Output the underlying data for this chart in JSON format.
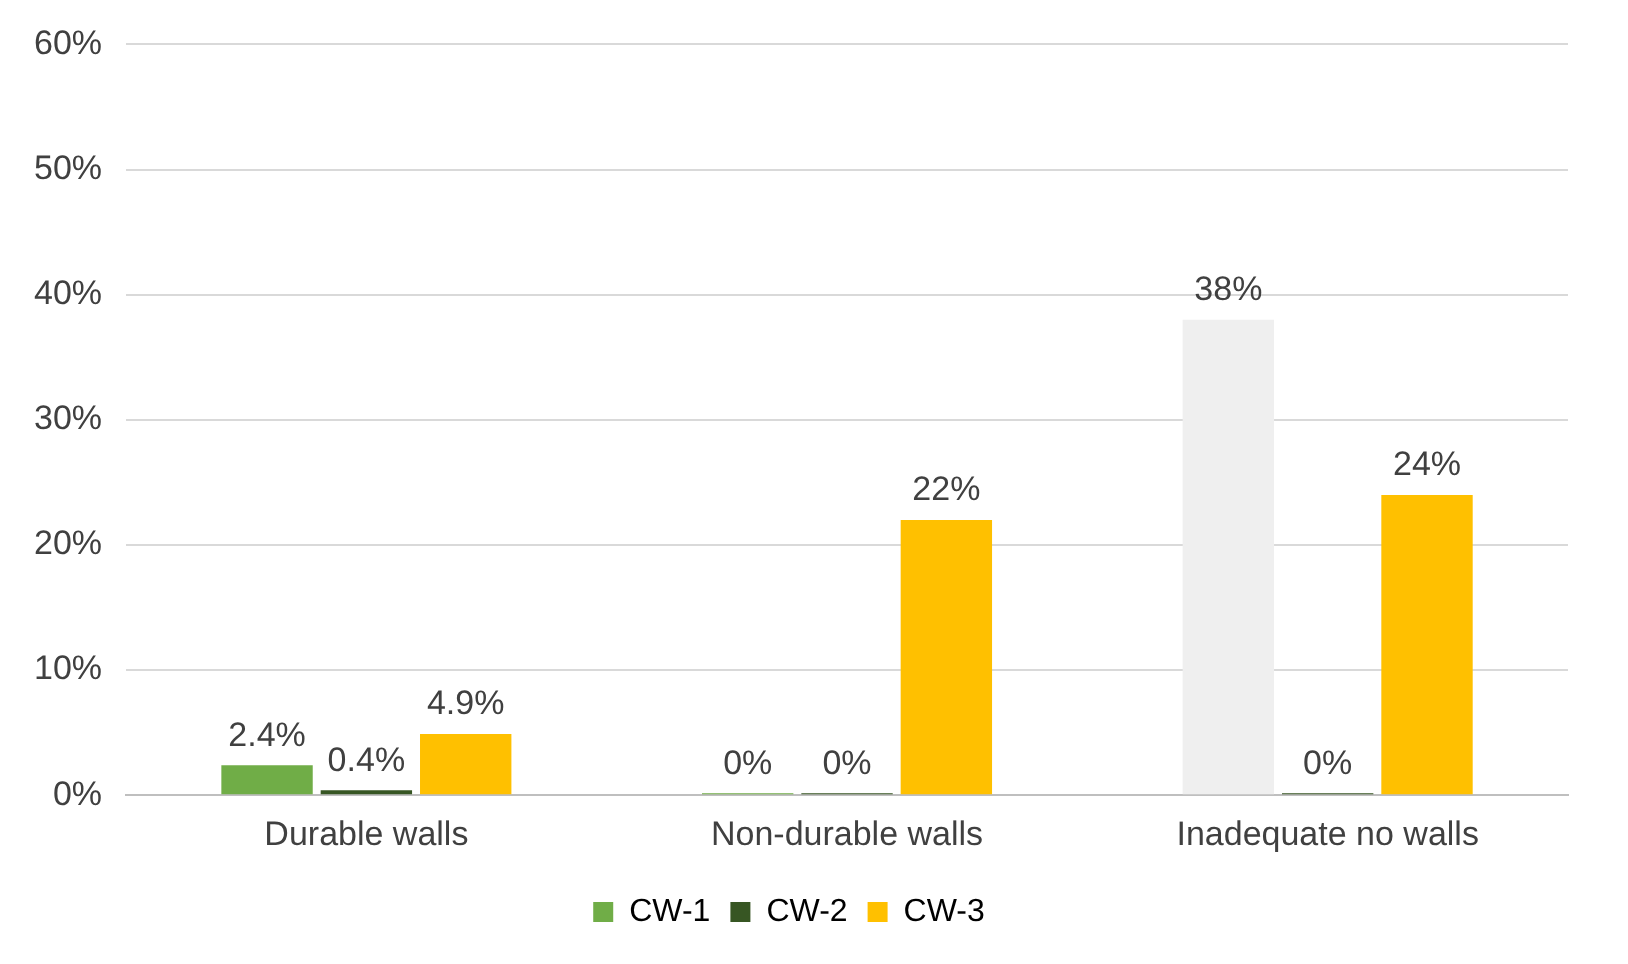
{
  "chart_data": {
    "type": "bar",
    "categories": [
      "Durable walls",
      "Non-durable walls",
      "Inadequate no walls"
    ],
    "series": [
      {
        "name": "CW-1",
        "color": "#70ad47",
        "colors": [
          "#70ad47",
          "#70ad47",
          "#efefef"
        ],
        "values": [
          2.4,
          0,
          38
        ],
        "value_labels": [
          "2.4%",
          "0%",
          "38%"
        ]
      },
      {
        "name": "CW-2",
        "color": "#375623",
        "values": [
          0.4,
          0,
          0
        ],
        "value_labels": [
          "0.4%",
          "0%",
          "0%"
        ]
      },
      {
        "name": "CW-3",
        "color": "#ffc000",
        "values": [
          4.9,
          22,
          24
        ],
        "value_labels": [
          "4.9%",
          "22%",
          "24%"
        ]
      }
    ],
    "ylim": [
      0,
      60
    ],
    "yticks": [
      {
        "value": 0,
        "label": "0%"
      },
      {
        "value": 10,
        "label": "10%"
      },
      {
        "value": 20,
        "label": "20%"
      },
      {
        "value": 30,
        "label": "30%"
      },
      {
        "value": 40,
        "label": "40%"
      },
      {
        "value": 50,
        "label": "50%"
      },
      {
        "value": 60,
        "label": "60%"
      }
    ],
    "grid": "y",
    "legend": "bottom"
  }
}
